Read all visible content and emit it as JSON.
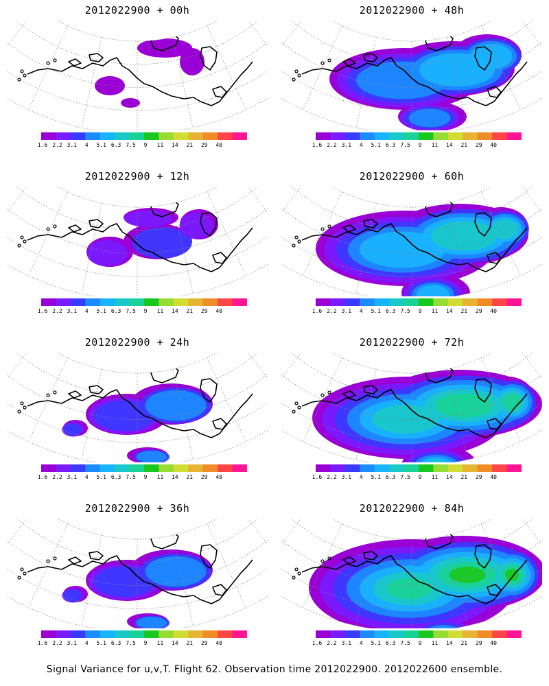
{
  "panels": [
    {
      "title": "2012022900 + 00h",
      "lead": "00h",
      "level": 0
    },
    {
      "title": "2012022900 + 48h",
      "lead": "48h",
      "level": 3
    },
    {
      "title": "2012022900 + 12h",
      "lead": "12h",
      "level": 1
    },
    {
      "title": "2012022900 + 60h",
      "lead": "60h",
      "level": 4
    },
    {
      "title": "2012022900 + 24h",
      "lead": "24h",
      "level": 2
    },
    {
      "title": "2012022900 + 72h",
      "lead": "72h",
      "level": 5
    },
    {
      "title": "2012022900 + 36h",
      "lead": "36h",
      "level": 2
    },
    {
      "title": "2012022900 + 84h",
      "lead": "84h",
      "level": 6
    }
  ],
  "colorbar": {
    "labels": [
      "1.6",
      "2.2",
      "3.1",
      "4",
      "5.1",
      "6.3",
      "7.5",
      "9",
      "11",
      "14",
      "21",
      "29",
      "40"
    ],
    "colors": [
      "#9a00d6",
      "#7a1aff",
      "#3a3aff",
      "#1a8cff",
      "#19b4ff",
      "#19c8c8",
      "#19d296",
      "#19c81e",
      "#96dc32",
      "#d2dc32",
      "#e6b432",
      "#f08c28",
      "#ff4646",
      "#ff1493"
    ]
  },
  "caption": "Signal Variance for u,v,T. Flight 62. Observation time 2012022900. 2012022600 ensemble."
}
